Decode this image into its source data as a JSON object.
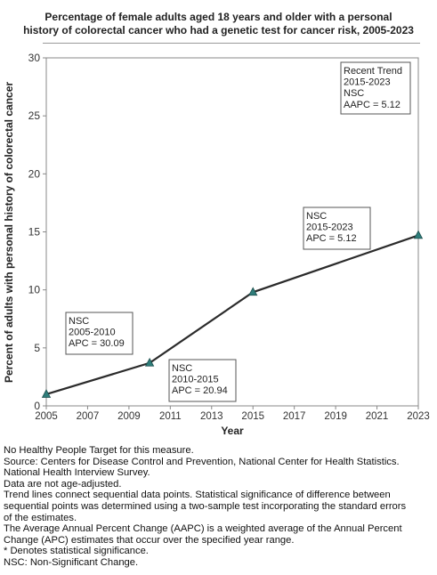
{
  "title_lines": [
    "Percentage of female adults aged 18 years and older with a personal",
    "history of colorectal cancer  who had a genetic test for cancer risk, 2005-2023"
  ],
  "chart_data": {
    "type": "line",
    "title": "Percentage of female adults aged 18 years and older with a personal history of colorectal cancer  who had a genetic test for cancer risk, 2005-2023",
    "xlabel": "Year",
    "ylabel": "Percent of adults with personal history of colorectal cancer",
    "xlim": [
      2005,
      2023
    ],
    "ylim": [
      0,
      30
    ],
    "x_ticks": [
      "2005",
      "2007",
      "2009",
      "2011",
      "2013",
      "2015",
      "2017",
      "2019",
      "2021",
      "2023"
    ],
    "y_ticks": [
      "0",
      "5",
      "10",
      "15",
      "20",
      "25",
      "30"
    ],
    "grid": "horizontal",
    "series": [
      {
        "x": [
          2005,
          2010,
          2015,
          2023
        ],
        "values": [
          1.0,
          3.7,
          9.8,
          14.7
        ],
        "color": "#2e7d7a"
      }
    ],
    "annotations": [
      {
        "lines": [
          "NSC",
          "2005-2010",
          "APC = 30.09"
        ]
      },
      {
        "lines": [
          "NSC",
          "2010-2015",
          "APC = 20.94"
        ]
      },
      {
        "lines": [
          "NSC",
          "2015-2023",
          "APC =  5.12"
        ]
      },
      {
        "lines": [
          "Recent Trend",
          "2015-2023",
          "NSC",
          "AAPC =  5.12"
        ]
      }
    ]
  },
  "notes": [
    "No Healthy People Target for this measure.",
    "Source: Centers for Disease Control and Prevention, National Center for Health Statistics.",
    "National Health Interview Survey.",
    "Data are not age-adjusted.",
    "Trend lines connect sequential data points. Statistical significance of difference between",
    "sequential points was determined using a two-sample test incorporating the standard errors",
    "of the estimates.",
    "The Average Annual Percent Change (AAPC) is a weighted average of the Annual Percent",
    "Change (APC) estimates that occur over the specified year range.",
    "* Denotes statistical significance.",
    "NSC: Non-Significant Change."
  ]
}
